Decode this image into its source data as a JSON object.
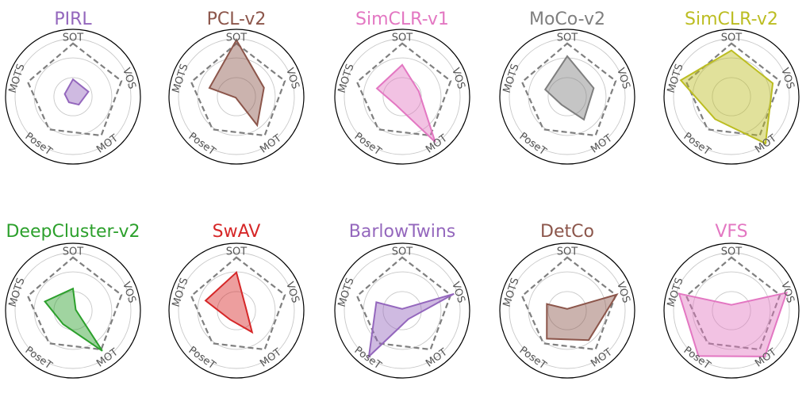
{
  "figure": {
    "axes": [
      "SOT",
      "VOS",
      "MOT",
      "PoseT",
      "MOTS"
    ],
    "reference_label": "",
    "grid": true
  },
  "chart_data": [
    {
      "type": "radar",
      "title": "PIRL",
      "color": "#9467bd",
      "axes": [
        "SOT",
        "VOS",
        "MOT",
        "PoseT",
        "MOTS"
      ],
      "range": [
        0,
        1
      ],
      "gridlines": [
        0.33,
        0.67,
        1.0
      ],
      "series": [
        {
          "values": [
            0.3,
            0.28,
            0.17,
            0.12,
            0.15
          ]
        }
      ],
      "reference": [
        0.92,
        0.88,
        0.83,
        0.7,
        0.82
      ]
    },
    {
      "type": "radar",
      "title": "PCL-v2",
      "color": "#8c564b",
      "axes": [
        "SOT",
        "VOS",
        "MOT",
        "PoseT",
        "MOTS"
      ],
      "range": [
        0,
        1
      ],
      "gridlines": [
        0.33,
        0.67,
        1.0
      ],
      "series": [
        {
          "values": [
            0.98,
            0.5,
            0.61,
            0.02,
            0.49
          ]
        }
      ],
      "reference": [
        0.92,
        0.88,
        0.83,
        0.7,
        0.82
      ]
    },
    {
      "type": "radar",
      "title": "SimCLR-v1",
      "color": "#e377c2",
      "axes": [
        "SOT",
        "VOS",
        "MOT",
        "PoseT",
        "MOTS"
      ],
      "range": [
        0,
        1
      ],
      "gridlines": [
        0.33,
        0.67,
        1.0
      ],
      "series": [
        {
          "values": [
            0.55,
            0.3,
            0.97,
            0.18,
            0.46
          ]
        }
      ],
      "reference": [
        0.92,
        0.88,
        0.83,
        0.7,
        0.82
      ]
    },
    {
      "type": "radar",
      "title": "MoCo-v2",
      "color": "#7f7f7f",
      "axes": [
        "SOT",
        "VOS",
        "MOT",
        "PoseT",
        "MOTS"
      ],
      "range": [
        0,
        1
      ],
      "gridlines": [
        0.33,
        0.67,
        1.0
      ],
      "series": [
        {
          "values": [
            0.7,
            0.48,
            0.49,
            0.17,
            0.4
          ]
        }
      ],
      "reference": [
        0.92,
        0.88,
        0.83,
        0.7,
        0.82
      ]
    },
    {
      "type": "radar",
      "title": "SimCLR-v2",
      "color": "#bcbd22",
      "axes": [
        "SOT",
        "VOS",
        "MOT",
        "PoseT",
        "MOTS"
      ],
      "range": [
        0,
        1
      ],
      "gridlines": [
        0.33,
        0.67,
        1.0
      ],
      "series": [
        {
          "values": [
            0.8,
            0.75,
            1.0,
            0.48,
            0.92
          ]
        }
      ],
      "reference": [
        0.92,
        0.88,
        0.83,
        0.7,
        0.82
      ]
    },
    {
      "type": "radar",
      "title": "DeepCluster-v2",
      "color": "#2ca02c",
      "axes": [
        "SOT",
        "VOS",
        "MOT",
        "PoseT",
        "MOTS"
      ],
      "range": [
        0,
        1
      ],
      "gridlines": [
        0.33,
        0.67,
        1.0
      ],
      "series": [
        {
          "values": [
            0.38,
            0.05,
            0.86,
            0.29,
            0.51
          ]
        }
      ],
      "reference": [
        0.92,
        0.88,
        0.83,
        0.7,
        0.82
      ]
    },
    {
      "type": "radar",
      "title": "SwAV",
      "color": "#d62728",
      "axes": [
        "SOT",
        "VOS",
        "MOT",
        "PoseT",
        "MOTS"
      ],
      "range": [
        0,
        1
      ],
      "gridlines": [
        0.33,
        0.67,
        1.0
      ],
      "series": [
        {
          "values": [
            0.66,
            0.17,
            0.46,
            0.19,
            0.56
          ]
        }
      ],
      "reference": [
        0.92,
        0.88,
        0.83,
        0.7,
        0.82
      ]
    },
    {
      "type": "radar",
      "title": "BarlowTwins",
      "color": "#9467bd",
      "axes": [
        "SOT",
        "VOS",
        "MOT",
        "PoseT",
        "MOTS"
      ],
      "range": [
        0,
        1
      ],
      "gridlines": [
        0.33,
        0.67,
        1.0
      ],
      "series": [
        {
          "values": [
            0.03,
            0.94,
            0.18,
            0.98,
            0.47
          ]
        }
      ],
      "reference": [
        0.92,
        0.88,
        0.83,
        0.7,
        0.82
      ]
    },
    {
      "type": "radar",
      "title": "DetCo",
      "color": "#8c564b",
      "axes": [
        "SOT",
        "VOS",
        "MOT",
        "PoseT",
        "MOTS"
      ],
      "range": [
        0,
        1
      ],
      "gridlines": [
        0.33,
        0.67,
        1.0
      ],
      "series": [
        {
          "values": [
            0.03,
            0.9,
            0.63,
            0.6,
            0.37
          ]
        }
      ],
      "reference": [
        0.92,
        0.88,
        0.83,
        0.7,
        0.82
      ]
    },
    {
      "type": "radar",
      "title": "VFS",
      "color": "#e377c2",
      "axes": [
        "SOT",
        "VOS",
        "MOT",
        "PoseT",
        "MOTS"
      ],
      "range": [
        0,
        1
      ],
      "gridlines": [
        0.33,
        0.67,
        1.0
      ],
      "series": [
        {
          "values": [
            0.1,
            1.0,
            0.98,
            0.97,
            0.95
          ]
        }
      ],
      "reference": [
        0.92,
        0.88,
        0.83,
        0.7,
        0.82
      ]
    }
  ]
}
